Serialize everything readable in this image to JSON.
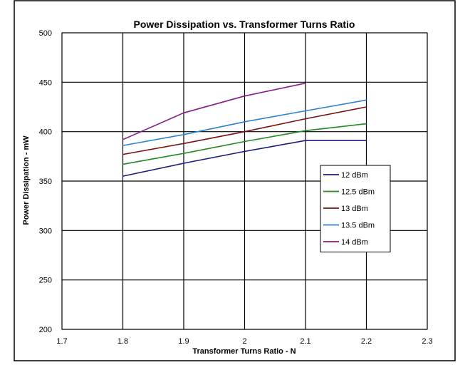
{
  "chart_data": {
    "type": "line",
    "title": "Power Dissipation vs. Transformer Turns Ratio",
    "xlabel": "Transformer Turns Ratio - N",
    "ylabel": "Power Dissipation - mW",
    "xlim": [
      1.7,
      2.3
    ],
    "ylim": [
      200,
      500
    ],
    "xticks": [
      1.7,
      1.8,
      1.9,
      2,
      2.1,
      2.2,
      2.3
    ],
    "yticks": [
      200,
      250,
      300,
      350,
      400,
      450,
      500
    ],
    "xtick_labels": [
      "1.7",
      "1.8",
      "1.9",
      "2",
      "2.1",
      "2.2",
      "2.3"
    ],
    "ytick_labels": [
      "200",
      "250",
      "300",
      "350",
      "400",
      "450",
      "500"
    ],
    "grid": true,
    "legend_position": "right-center",
    "series": [
      {
        "name": "12 dBm",
        "color": "#1a1a80",
        "x": [
          1.8,
          1.9,
          2.0,
          2.1,
          2.2
        ],
        "y": [
          355,
          368,
          380,
          391,
          391
        ]
      },
      {
        "name": "12.5 dBm",
        "color": "#1f8a1f",
        "x": [
          1.8,
          1.9,
          2.0,
          2.1,
          2.2
        ],
        "y": [
          367,
          378,
          390,
          401,
          408
        ]
      },
      {
        "name": "13 dBm",
        "color": "#7a1010",
        "x": [
          1.8,
          1.9,
          2.0,
          2.1,
          2.2
        ],
        "y": [
          377,
          388,
          400,
          413,
          425
        ]
      },
      {
        "name": "13.5 dBm",
        "color": "#2a82d0",
        "x": [
          1.8,
          1.9,
          2.0,
          2.1,
          2.2
        ],
        "y": [
          386,
          397,
          410,
          421,
          432
        ]
      },
      {
        "name": "14 dBm",
        "color": "#8a1a8a",
        "x": [
          1.8,
          1.9,
          2.0,
          2.1
        ],
        "y": [
          392,
          419,
          436,
          449
        ]
      }
    ]
  }
}
